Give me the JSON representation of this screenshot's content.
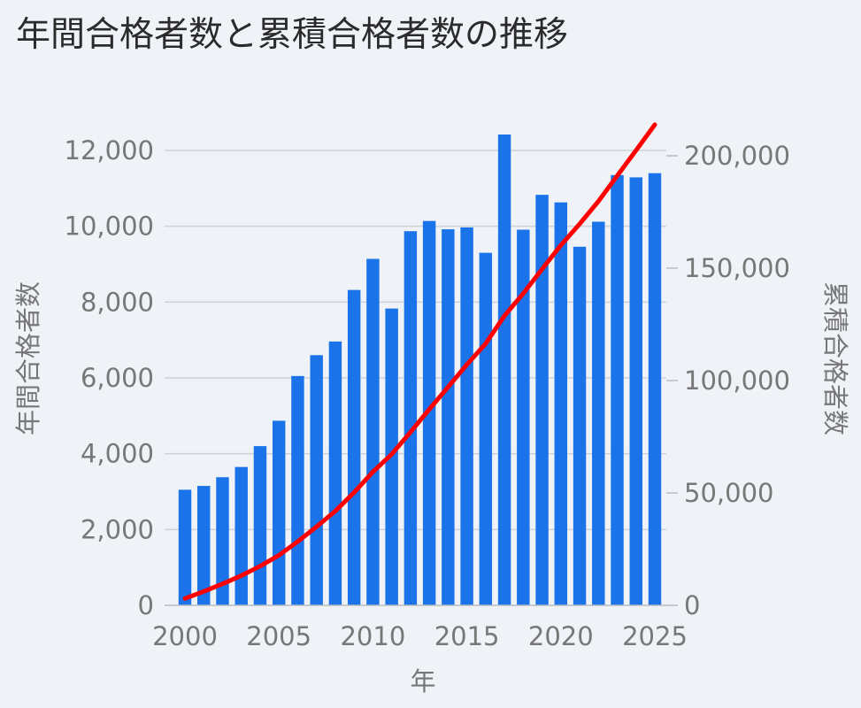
{
  "chart_data": {
    "type": "bar",
    "title": "年間合格者数と累積合格者数の推移",
    "xlabel": "年",
    "ylabel": "年間合格者数",
    "y2label": "累積合格者数",
    "x": [
      2000,
      2001,
      2002,
      2003,
      2004,
      2005,
      2006,
      2007,
      2008,
      2009,
      2010,
      2011,
      2012,
      2013,
      2014,
      2015,
      2016,
      2017,
      2018,
      2019,
      2020,
      2021,
      2022,
      2023,
      2024,
      2025
    ],
    "xlim": [
      2000,
      2025
    ],
    "xticks": [
      2000,
      2005,
      2010,
      2015,
      2020,
      2025
    ],
    "ylim": [
      0,
      12000
    ],
    "yticks": [
      0,
      2000,
      4000,
      6000,
      8000,
      10000,
      12000
    ],
    "y2lim": [
      0,
      200000
    ],
    "y2ticks": [
      0,
      50000,
      100000,
      150000,
      200000
    ],
    "grid": true,
    "series": [
      {
        "type": "bar",
        "axis": "left",
        "color": "#1a73e8",
        "values": [
          3050,
          3150,
          3380,
          3650,
          4200,
          4870,
          6050,
          6600,
          6960,
          8320,
          9140,
          7830,
          9870,
          10140,
          9920,
          9970,
          9300,
          12420,
          9910,
          10830,
          10630,
          9460,
          10120,
          11350,
          11290,
          11400
        ]
      },
      {
        "type": "line",
        "axis": "right",
        "color": "#ff0000",
        "values": [
          3050,
          6200,
          9580,
          13230,
          17430,
          22300,
          28350,
          34950,
          41910,
          50230,
          59370,
          67200,
          77070,
          87210,
          97130,
          107100,
          116400,
          128820,
          138730,
          149560,
          160190,
          169650,
          179770,
          191120,
          202410,
          213810
        ]
      }
    ]
  }
}
